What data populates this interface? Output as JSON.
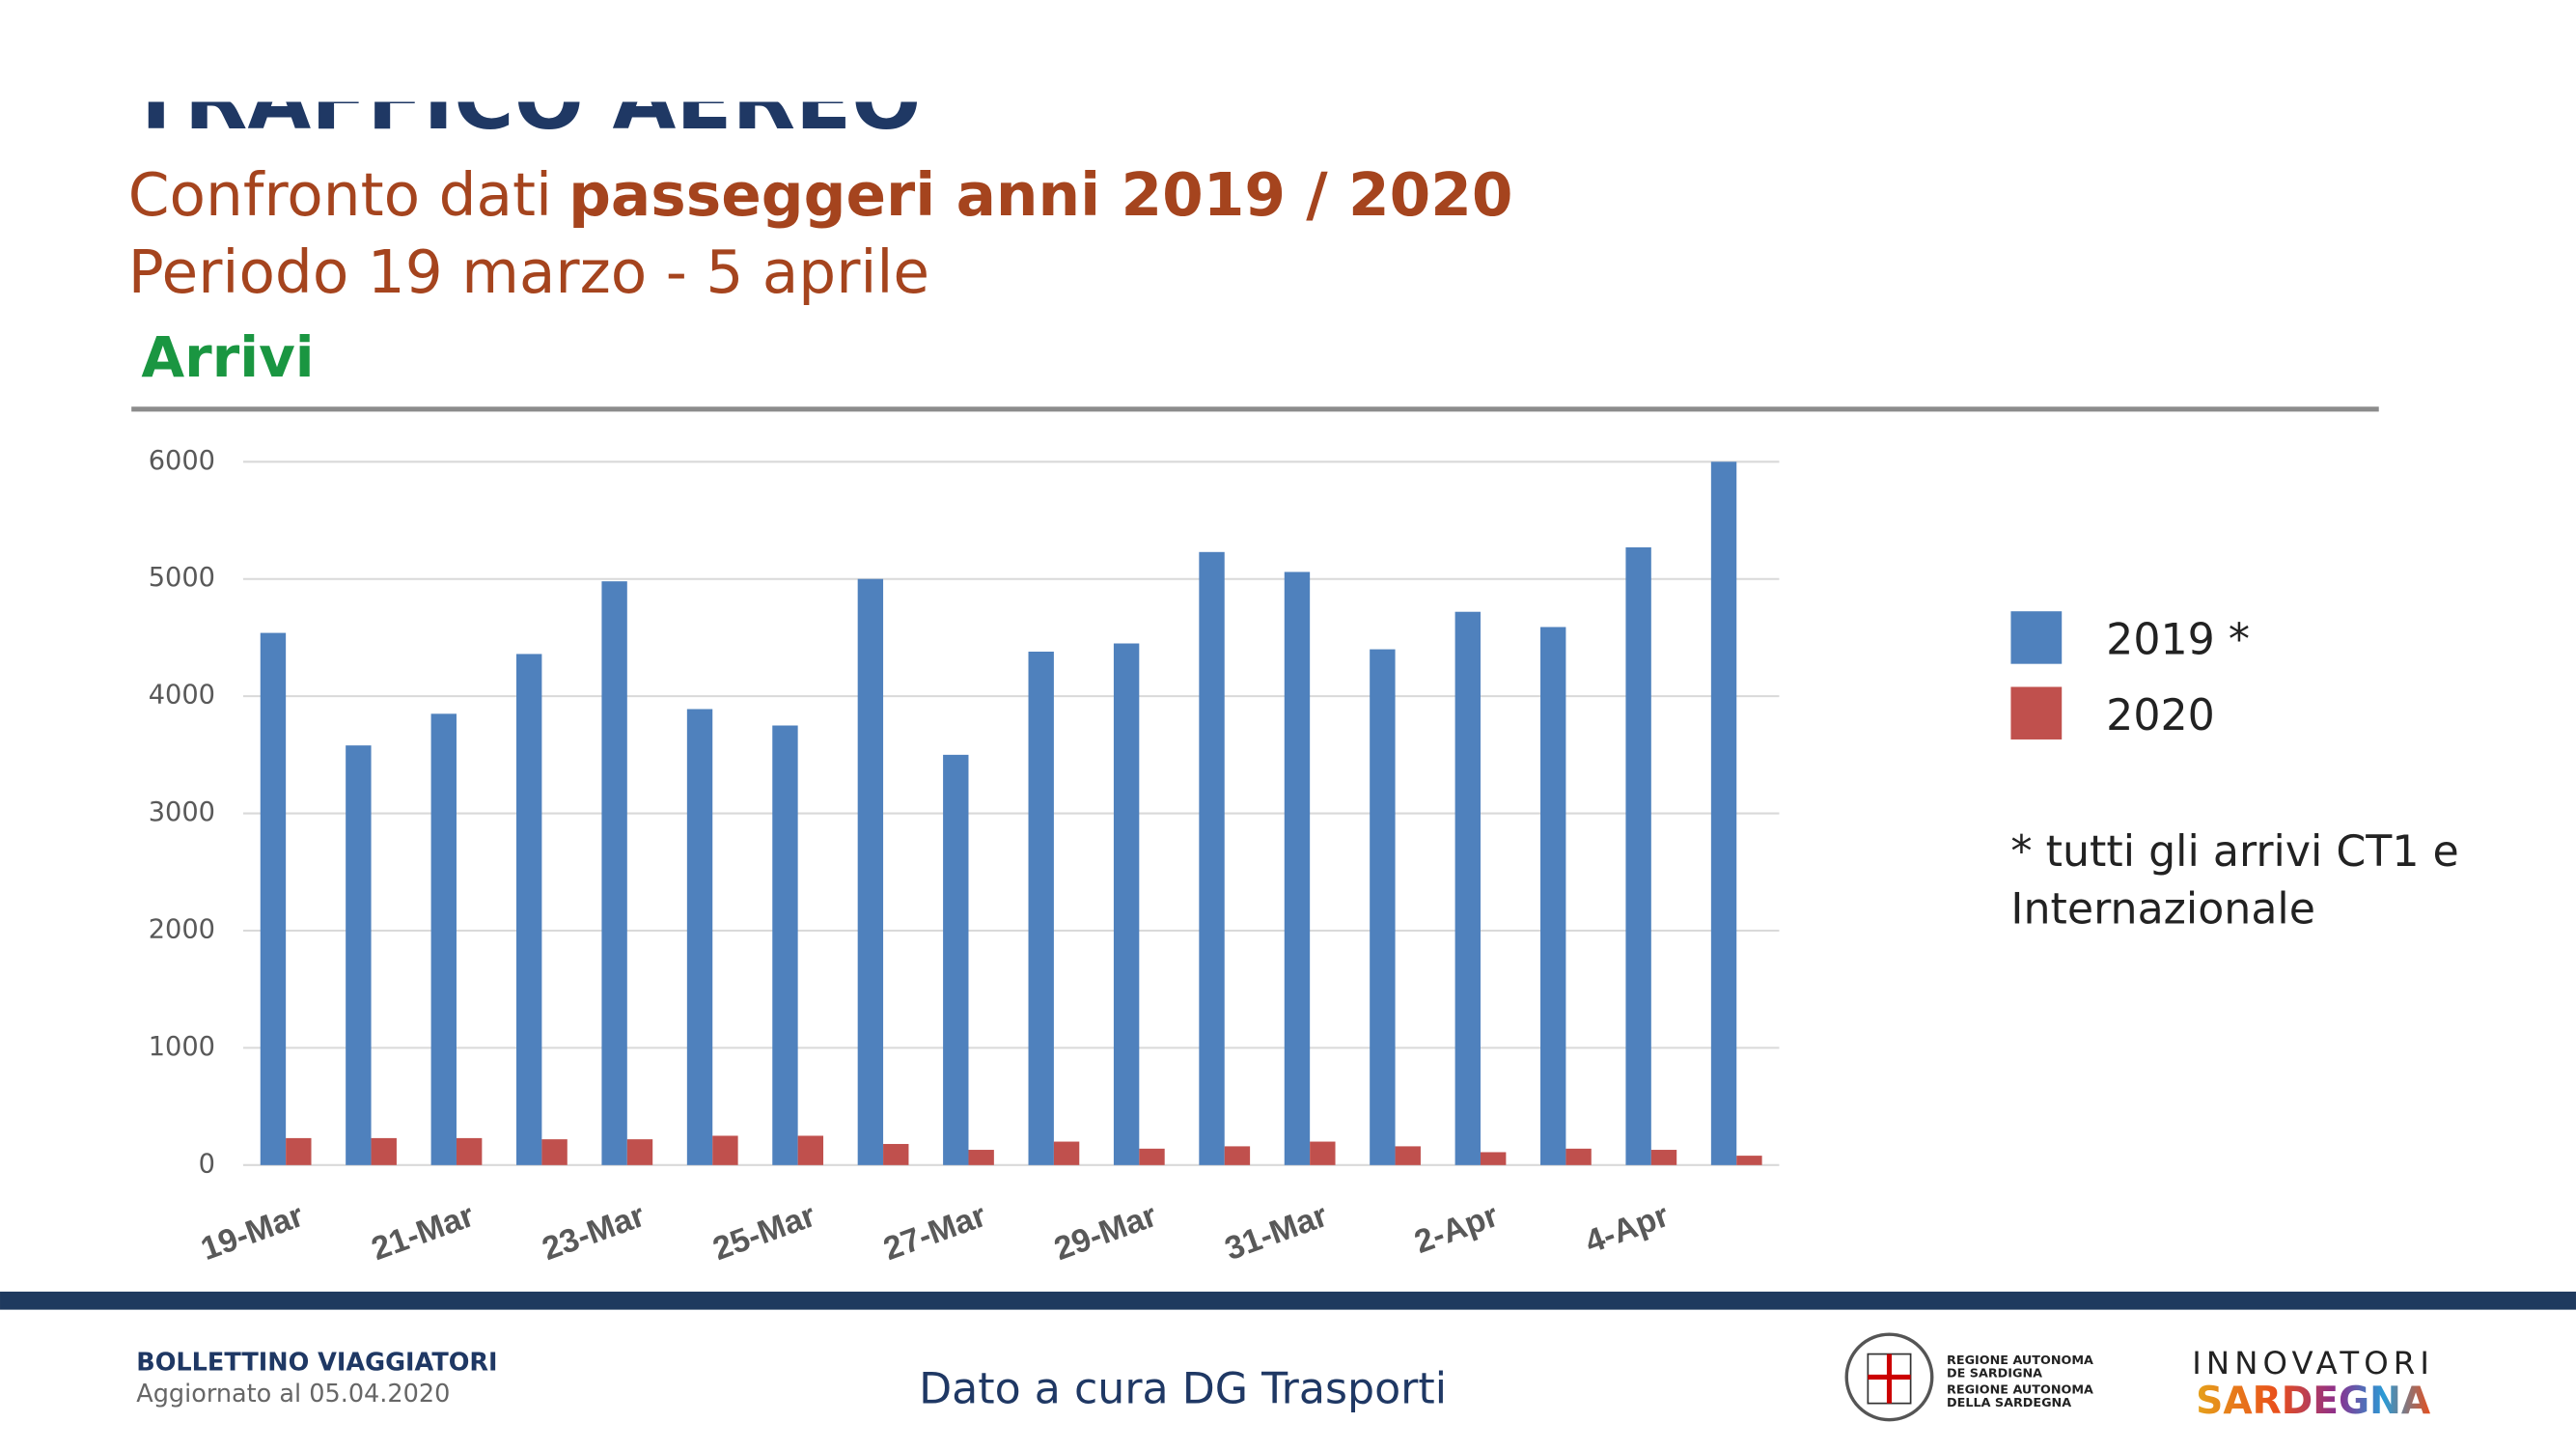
{
  "header": {
    "title": "TRAFFICO AEREO",
    "subtitle_plain": "Confronto dati",
    "subtitle_bold": "passeggeri anni 2019 / 2020",
    "period": "Periodo 19 marzo - 5 aprile",
    "section": "Arrivi"
  },
  "chart_data": {
    "type": "bar",
    "categories": [
      "19-Mar",
      null,
      "21-Mar",
      null,
      "23-Mar",
      null,
      "25-Mar",
      null,
      "27-Mar",
      null,
      "29-Mar",
      null,
      "31-Mar",
      null,
      "2-Apr",
      null,
      "4-Apr",
      null
    ],
    "series": [
      {
        "name": "2019 *",
        "color": "#4f81bd",
        "values": [
          4540,
          3580,
          3850,
          4360,
          4980,
          3890,
          3750,
          5000,
          3500,
          4380,
          4450,
          5230,
          5060,
          4400,
          4720,
          4590,
          5270,
          6000
        ]
      },
      {
        "name": "2020",
        "color": "#c0504d",
        "values": [
          230,
          230,
          230,
          220,
          220,
          250,
          250,
          180,
          130,
          200,
          140,
          160,
          200,
          160,
          110,
          140,
          130,
          80
        ]
      }
    ],
    "ylim": [
      0,
      6000
    ],
    "yticks": [
      0,
      1000,
      2000,
      3000,
      4000,
      5000,
      6000
    ],
    "grid": true,
    "legend": "right",
    "note": [
      "* tutti gli arrivi CT1 e",
      "Internazionale"
    ]
  },
  "footer": {
    "bulletin": "BOLLETTINO VIAGGIATORI",
    "updated": "Aggiornato al 05.04.2020",
    "credit": "Dato a cura DG Trasporti",
    "region_logo": [
      "REGIONE AUTONOMA",
      "DE SARDIGNA",
      "REGIONE AUTONOMA",
      "DELLA SARDEGNA"
    ],
    "brand_top": "INNOVATORI",
    "brand_bottom": "SARDEGNA"
  }
}
